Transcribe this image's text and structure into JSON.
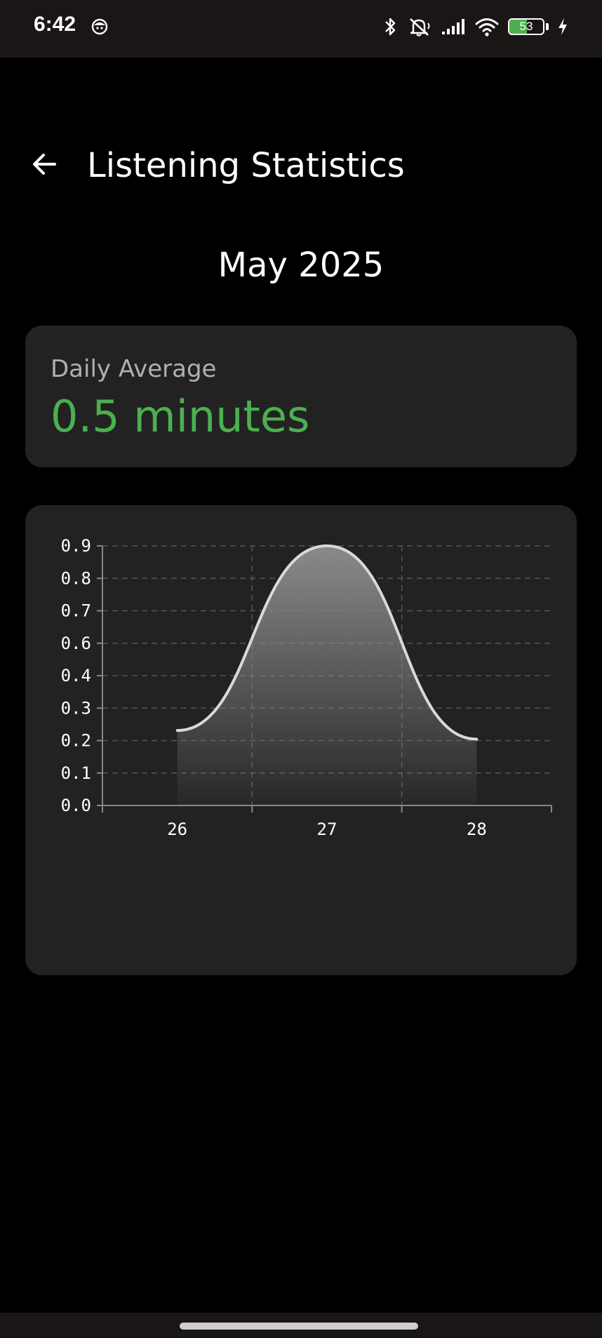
{
  "status_bar": {
    "time": "6:42",
    "battery_level": 53,
    "battery_text": "53",
    "icons": [
      "face-icon",
      "bluetooth-icon",
      "mute-icon",
      "signal-icon",
      "wifi-icon",
      "battery-icon",
      "charging-icon"
    ]
  },
  "app_bar": {
    "back_icon": "arrow-left-icon",
    "title": "Listening Statistics"
  },
  "period": {
    "label": "May 2025"
  },
  "daily_average": {
    "label": "Daily Average",
    "value": "0.5 minutes",
    "accent_color": "#4caf50"
  },
  "chart_data": {
    "type": "area",
    "x": [
      26,
      27,
      28
    ],
    "categories": [
      "26",
      "27",
      "28"
    ],
    "values": [
      0.26,
      0.9,
      0.23
    ],
    "y_ticks": [
      0.0,
      0.1,
      0.2,
      0.3,
      0.4,
      0.6,
      0.7,
      0.8,
      0.9
    ],
    "y_tick_labels": [
      "0.0",
      "0.1",
      "0.2",
      "0.3",
      "0.4",
      "0.6",
      "0.7",
      "0.8",
      "0.9"
    ],
    "x_tick_labels": [
      "26",
      "27",
      "28"
    ],
    "xlim": [
      25.5,
      28.5
    ],
    "ylim": [
      0.0,
      0.9
    ],
    "grid": true,
    "smooth": true,
    "line_color": "#d9d9d9",
    "fill_color": "#8a8a8a"
  }
}
